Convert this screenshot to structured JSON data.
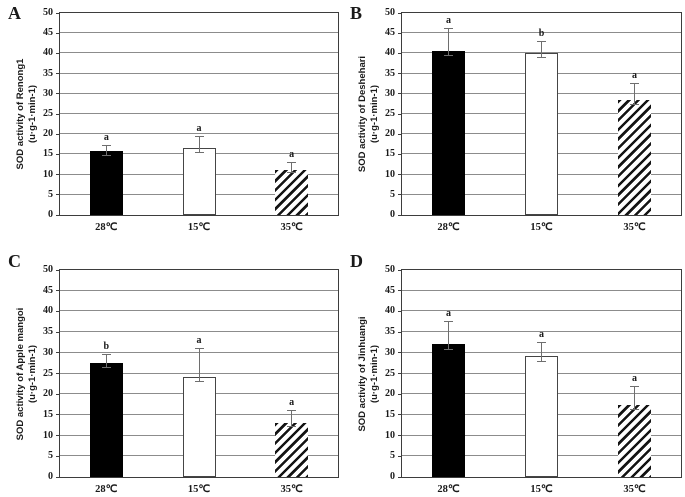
{
  "figure_title": "",
  "colors": {
    "background": "#ffffff",
    "bar_fill_black": "#000000",
    "bar_open_border": "#454545",
    "hatch_stroke": "#141414",
    "gridline": "#8c8c8c",
    "axis_border": "#3d3d3d",
    "error_bar": "#6e6e6e",
    "text": "#1a1a1a"
  },
  "chart_data": [
    {
      "type": "bar",
      "panel_label": "A",
      "ylabel": "SOD activity of Renong1",
      "ylabel_unit": "(u·g-1·min-1)",
      "ylim": [
        0,
        50
      ],
      "ytick_interval": 5,
      "grid": true,
      "legend": "none",
      "categories": [
        "28℃",
        "15℃",
        "35℃"
      ],
      "values": [
        15.8,
        16.5,
        11.2
      ],
      "whisker_top": [
        17.1,
        19.3,
        12.9
      ],
      "whisker_bottom": [
        14.7,
        15.4,
        10.5
      ],
      "sig_letters": [
        "a",
        "a",
        "a"
      ],
      "bar_styles": [
        "solid-black",
        "open-white",
        "hatched-diagonal"
      ]
    },
    {
      "type": "bar",
      "panel_label": "B",
      "ylabel": "SOD activity of Deshehari",
      "ylabel_unit": "(u·g-1·min-1)",
      "ylim": [
        0,
        50
      ],
      "ytick_interval": 5,
      "grid": true,
      "legend": "none",
      "categories": [
        "28℃",
        "15℃",
        "35℃"
      ],
      "values": [
        40.5,
        40.0,
        28.4
      ],
      "whisker_top": [
        46.0,
        42.8,
        32.4
      ],
      "whisker_bottom": [
        39.3,
        38.9,
        27.2
      ],
      "sig_letters": [
        "a",
        "b",
        "a"
      ],
      "bar_styles": [
        "solid-black",
        "open-white",
        "hatched-diagonal"
      ]
    },
    {
      "type": "bar",
      "panel_label": "C",
      "ylabel": "SOD activity of Apple mangoi",
      "ylabel_unit": "(u·g-1·min-1)",
      "ylim": [
        0,
        50
      ],
      "ytick_interval": 5,
      "grid": true,
      "legend": "none",
      "categories": [
        "28℃",
        "15℃",
        "35℃"
      ],
      "values": [
        27.5,
        24.2,
        13.0
      ],
      "whisker_top": [
        29.4,
        30.9,
        16.0
      ],
      "whisker_bottom": [
        26.3,
        23.0,
        12.2
      ],
      "sig_letters": [
        "b",
        "a",
        "a"
      ],
      "bar_styles": [
        "solid-black",
        "open-white",
        "hatched-diagonal"
      ]
    },
    {
      "type": "bar",
      "panel_label": "D",
      "ylabel": "SOD activity of Jinhuangi",
      "ylabel_unit": "(u·g-1·min-1)",
      "ylim": [
        0,
        50
      ],
      "ytick_interval": 5,
      "grid": true,
      "legend": "none",
      "categories": [
        "28℃",
        "15℃",
        "35℃"
      ],
      "values": [
        32.2,
        29.3,
        17.5
      ],
      "whisker_top": [
        37.4,
        32.3,
        21.7
      ],
      "whisker_bottom": [
        30.8,
        27.7,
        16.3
      ],
      "sig_letters": [
        "a",
        "a",
        "a"
      ],
      "bar_styles": [
        "solid-black",
        "open-white",
        "hatched-diagonal"
      ]
    }
  ]
}
